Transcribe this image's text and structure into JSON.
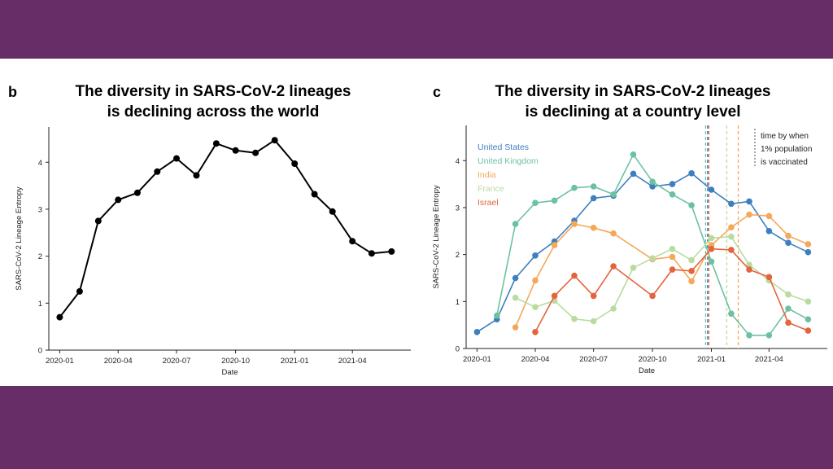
{
  "colors": {
    "background": "#662d67",
    "panel": "#ffffff"
  },
  "panel_b": {
    "letter": "b",
    "title_line1": "The diversity in SARS-CoV-2 lineages",
    "title_line2": "is declining across the world"
  },
  "panel_c": {
    "letter": "c",
    "title_line1": "The diversity in SARS-CoV-2 lineages",
    "title_line2": "is declining at a country level",
    "note_lines": [
      "time by when",
      "1% population",
      "is vaccinated"
    ]
  },
  "chart_data": [
    {
      "type": "line",
      "title": "The diversity in SARS-CoV-2 lineages is declining across the world",
      "xlabel": "Date",
      "ylabel": "SARS-CoV-2 Lineage Entropy",
      "ylim": [
        0,
        4.75
      ],
      "xlim": [
        "2019-12-15",
        "2021-07-01"
      ],
      "x_ticks": [
        "2020-01",
        "2020-04",
        "2020-07",
        "2020-10",
        "2021-01",
        "2021-04"
      ],
      "y_ticks": [
        0,
        1,
        2,
        3,
        4
      ],
      "series": [
        {
          "color": "#000000",
          "x": [
            "2020-01",
            "2020-02",
            "2020-03",
            "2020-04",
            "2020-05",
            "2020-06",
            "2020-07",
            "2020-08",
            "2020-09",
            "2020-10",
            "2020-11",
            "2020-12",
            "2021-01",
            "2021-02",
            "2021-03",
            "2021-04",
            "2021-05",
            "2021-06"
          ],
          "values": [
            0.7,
            1.25,
            2.75,
            3.2,
            3.35,
            3.8,
            4.08,
            3.72,
            4.4,
            4.25,
            4.2,
            4.47,
            3.97,
            3.32,
            2.95,
            2.32,
            2.06,
            2.1
          ]
        }
      ]
    },
    {
      "type": "line",
      "title": "The diversity in SARS-CoV-2 lineages is declining at a country level",
      "xlabel": "Date",
      "ylabel": "SARS-CoV-2 Lineage Entropy",
      "ylim": [
        0,
        4.75
      ],
      "xlim": [
        "2019-12-15",
        "2021-07-01"
      ],
      "x_ticks": [
        "2020-01",
        "2020-04",
        "2020-07",
        "2020-10",
        "2021-01",
        "2021-04"
      ],
      "y_ticks": [
        0,
        1,
        2,
        3,
        4
      ],
      "legend_position": "top-left",
      "series": [
        {
          "name": "United States",
          "color": "#3d7fbf",
          "x": [
            "2020-01",
            "2020-02",
            "2020-03",
            "2020-04",
            "2020-05",
            "2020-06",
            "2020-07",
            "2020-08",
            "2020-09",
            "2020-10",
            "2020-11",
            "2020-12",
            "2021-01",
            "2021-02",
            "2021-03",
            "2021-04",
            "2021-05",
            "2021-06"
          ],
          "values": [
            0.35,
            0.62,
            1.5,
            1.98,
            2.28,
            2.72,
            3.2,
            3.25,
            3.72,
            3.45,
            3.5,
            3.73,
            3.38,
            3.08,
            3.13,
            2.5,
            2.25,
            2.05
          ],
          "vaccination_date": "2020-12-26"
        },
        {
          "name": "United Kingdom",
          "color": "#6cc2a0",
          "x": [
            "2020-02",
            "2020-03",
            "2020-04",
            "2020-05",
            "2020-06",
            "2020-07",
            "2020-08",
            "2020-09",
            "2020-10",
            "2020-11",
            "2020-12",
            "2021-01",
            "2021-02",
            "2021-03",
            "2021-04",
            "2021-05",
            "2021-06"
          ],
          "values": [
            0.7,
            2.65,
            3.1,
            3.15,
            3.42,
            3.45,
            3.28,
            4.13,
            3.55,
            3.28,
            3.05,
            1.85,
            0.74,
            0.28,
            0.28,
            0.85,
            0.62
          ],
          "vaccination_date": "2020-12-23"
        },
        {
          "name": "India",
          "color": "#f4a85a",
          "x": [
            "2020-03",
            "2020-04",
            "2020-05",
            "2020-06",
            "2020-07",
            "2020-08",
            "2020-10",
            "2020-11",
            "2020-12",
            "2021-01",
            "2021-02",
            "2021-03",
            "2021-04",
            "2021-05",
            "2021-06"
          ],
          "values": [
            0.45,
            1.45,
            2.2,
            2.65,
            2.57,
            2.45,
            1.9,
            1.95,
            1.43,
            2.2,
            2.58,
            2.85,
            2.82,
            2.4,
            2.22
          ],
          "vaccination_date": "2021-02-12"
        },
        {
          "name": "France",
          "color": "#b9dba0",
          "x": [
            "2020-03",
            "2020-04",
            "2020-05",
            "2020-06",
            "2020-07",
            "2020-08",
            "2020-09",
            "2020-10",
            "2020-11",
            "2020-12",
            "2021-01",
            "2021-02",
            "2021-03",
            "2021-04",
            "2021-05",
            "2021-06"
          ],
          "values": [
            1.08,
            0.88,
            1.02,
            0.63,
            0.58,
            0.85,
            1.72,
            1.92,
            2.12,
            1.88,
            2.35,
            2.38,
            1.78,
            1.45,
            1.15,
            1.0
          ],
          "vaccination_date": "2021-01-25"
        },
        {
          "name": "Israel",
          "color": "#e4643e",
          "x": [
            "2020-04",
            "2020-05",
            "2020-06",
            "2020-07",
            "2020-08",
            "2020-10",
            "2020-11",
            "2020-12",
            "2021-01",
            "2021-02",
            "2021-03",
            "2021-04",
            "2021-05",
            "2021-06"
          ],
          "values": [
            0.35,
            1.12,
            1.55,
            1.12,
            1.75,
            1.12,
            1.68,
            1.65,
            2.12,
            2.1,
            1.68,
            1.52,
            0.55,
            0.38
          ],
          "vaccination_date": "2020-12-28"
        }
      ]
    }
  ]
}
